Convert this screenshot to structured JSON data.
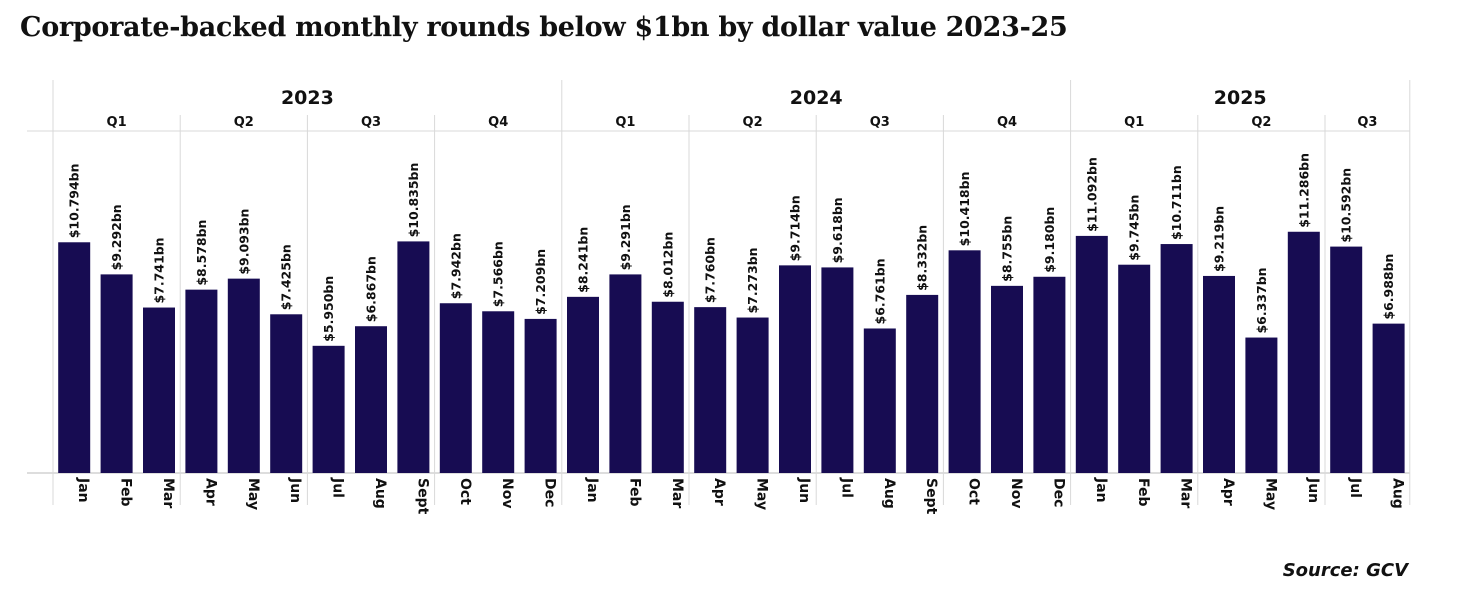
{
  "chart_data": {
    "type": "bar",
    "title": "Corporate-backed monthly rounds below $1bn by dollar value 2023-25",
    "source": "Source: GCV",
    "bar_color": "#170c52",
    "ylim": [
      0,
      16
    ],
    "grid": false,
    "years": [
      {
        "label": "2023",
        "quarters": [
          {
            "label": "Q1",
            "months": [
              "Jan",
              "Feb",
              "Mar"
            ]
          },
          {
            "label": "Q2",
            "months": [
              "Apr",
              "May",
              "Jun"
            ]
          },
          {
            "label": "Q3",
            "months": [
              "Jul",
              "Aug",
              "Sept"
            ]
          },
          {
            "label": "Q4",
            "months": [
              "Oct",
              "Nov",
              "Dec"
            ]
          }
        ]
      },
      {
        "label": "2024",
        "quarters": [
          {
            "label": "Q1",
            "months": [
              "Jan",
              "Feb",
              "Mar"
            ]
          },
          {
            "label": "Q2",
            "months": [
              "Apr",
              "May",
              "Jun"
            ]
          },
          {
            "label": "Q3",
            "months": [
              "Jul",
              "Aug",
              "Sept"
            ]
          },
          {
            "label": "Q4",
            "months": [
              "Oct",
              "Nov",
              "Dec"
            ]
          }
        ]
      },
      {
        "label": "2025",
        "quarters": [
          {
            "label": "Q1",
            "months": [
              "Jan",
              "Feb",
              "Mar"
            ]
          },
          {
            "label": "Q2",
            "months": [
              "Apr",
              "May",
              "Jun"
            ]
          },
          {
            "label": "Q3",
            "months": [
              "Jul",
              "Aug"
            ]
          }
        ]
      }
    ],
    "values": [
      10.794,
      9.292,
      7.741,
      8.578,
      9.093,
      7.425,
      5.95,
      6.867,
      10.835,
      7.942,
      7.566,
      7.209,
      8.241,
      9.291,
      8.012,
      7.76,
      7.273,
      9.714,
      9.618,
      6.761,
      8.332,
      10.418,
      8.755,
      9.18,
      11.092,
      9.745,
      10.711,
      9.219,
      6.337,
      11.286,
      10.592,
      6.988
    ],
    "data_labels": [
      "$10.794bn",
      "$9.292bn",
      "$7.741bn",
      "$8.578bn",
      "$9.093bn",
      "$7.425bn",
      "$5.950bn",
      "$6.867bn",
      "$10.835bn",
      "$7.942bn",
      "$7.566bn",
      "$7.209bn",
      "$8.241bn",
      "$9.291bn",
      "$8.012bn",
      "$7.760bn",
      "$7.273bn",
      "$9.714bn",
      "$9.618bn",
      "$6.761bn",
      "$8.332bn",
      "$10.418bn",
      "$8.755bn",
      "$9.180bn",
      "$11.092bn",
      "$9.745bn",
      "$10.711bn",
      "$9.219bn",
      "$6.337bn",
      "$11.286bn",
      "$10.592bn",
      "$6.988bn"
    ]
  }
}
